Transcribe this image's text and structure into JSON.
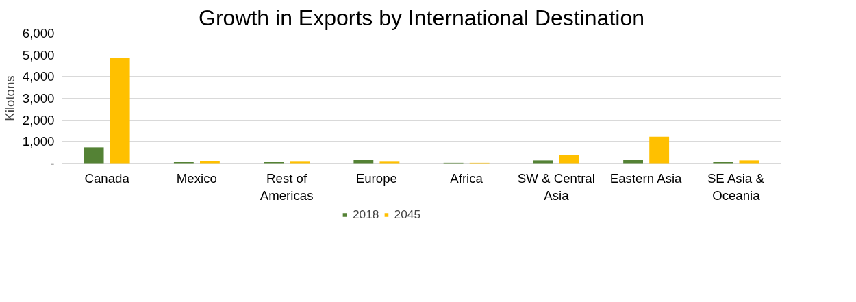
{
  "chart_data": {
    "type": "bar",
    "title": "Growth in Exports by International Destination",
    "ylabel": "Kilotons",
    "categories": [
      "Canada",
      "Mexico",
      "Rest of Americas",
      "Europe",
      "Africa",
      "SW & Central Asia",
      "Eastern Asia",
      "SE Asia & Oceania"
    ],
    "series": [
      {
        "name": "2018",
        "color": "#548235",
        "values": [
          730,
          70,
          70,
          150,
          20,
          130,
          160,
          60
        ]
      },
      {
        "name": "2045",
        "color": "#ffc000",
        "values": [
          4850,
          110,
          100,
          100,
          20,
          380,
          1220,
          130
        ]
      }
    ],
    "ylim": [
      0,
      6000
    ],
    "yticks": [
      {
        "value": 0,
        "label": "-"
      },
      {
        "value": 1000,
        "label": "1,000"
      },
      {
        "value": 2000,
        "label": "2,000"
      },
      {
        "value": 3000,
        "label": "3,000"
      },
      {
        "value": 4000,
        "label": "4,000"
      },
      {
        "value": 5000,
        "label": "5,000"
      },
      {
        "value": 6000,
        "label": "6,000"
      }
    ],
    "grid": "y",
    "legend": "bottom"
  }
}
